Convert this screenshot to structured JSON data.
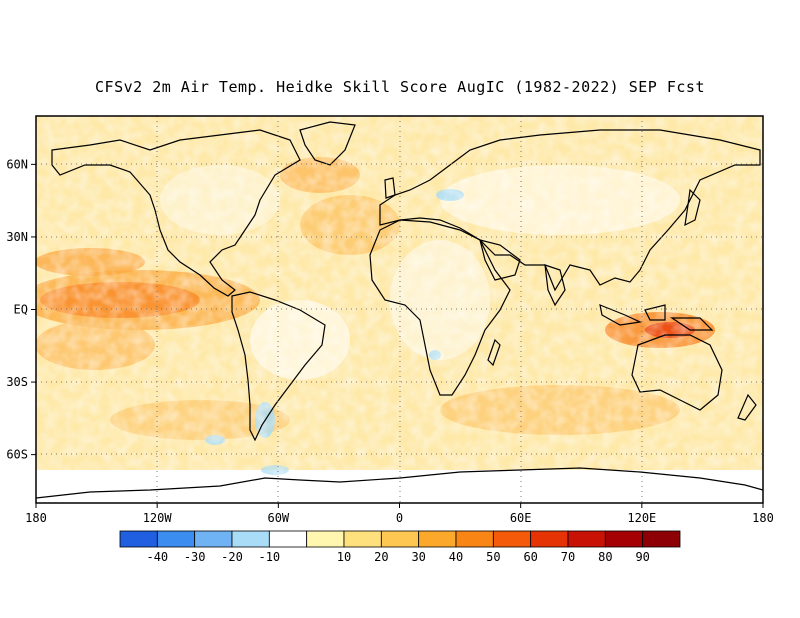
{
  "title": "CFSv2 2m Air Temp. Heidke Skill Score AugIC (1982-2022) SEP Fcst",
  "map": {
    "projection": "cylindrical",
    "lon_range": [
      -180,
      180
    ],
    "lat_range": [
      -80,
      80
    ],
    "lat_ticks": [
      {
        "lat": 60,
        "label": "60N"
      },
      {
        "lat": 30,
        "label": "30N"
      },
      {
        "lat": 0,
        "label": "EQ"
      },
      {
        "lat": -30,
        "label": "30S"
      },
      {
        "lat": -60,
        "label": "60S"
      }
    ],
    "lon_ticks": [
      {
        "lon": -180,
        "label": "180"
      },
      {
        "lon": -120,
        "label": "120W"
      },
      {
        "lon": -60,
        "label": "60W"
      },
      {
        "lon": 0,
        "label": "0"
      },
      {
        "lon": 60,
        "label": "60E"
      },
      {
        "lon": 120,
        "label": "120E"
      },
      {
        "lon": 180,
        "label": "180"
      }
    ],
    "grid": "dotted"
  },
  "colorbar": {
    "colors": [
      "#1f5fe0",
      "#3b8ef0",
      "#6fb3f5",
      "#a8dcf7",
      "#ffffff",
      "#fff7b0",
      "#fee07c",
      "#fdc752",
      "#fca82b",
      "#f98515",
      "#f45a09",
      "#e53306",
      "#c81205",
      "#a50105",
      "#8c0006"
    ],
    "labels": [
      "-40",
      "-30",
      "-20",
      "-10",
      "10",
      "20",
      "30",
      "40",
      "50",
      "60",
      "70",
      "80",
      "90"
    ]
  }
}
